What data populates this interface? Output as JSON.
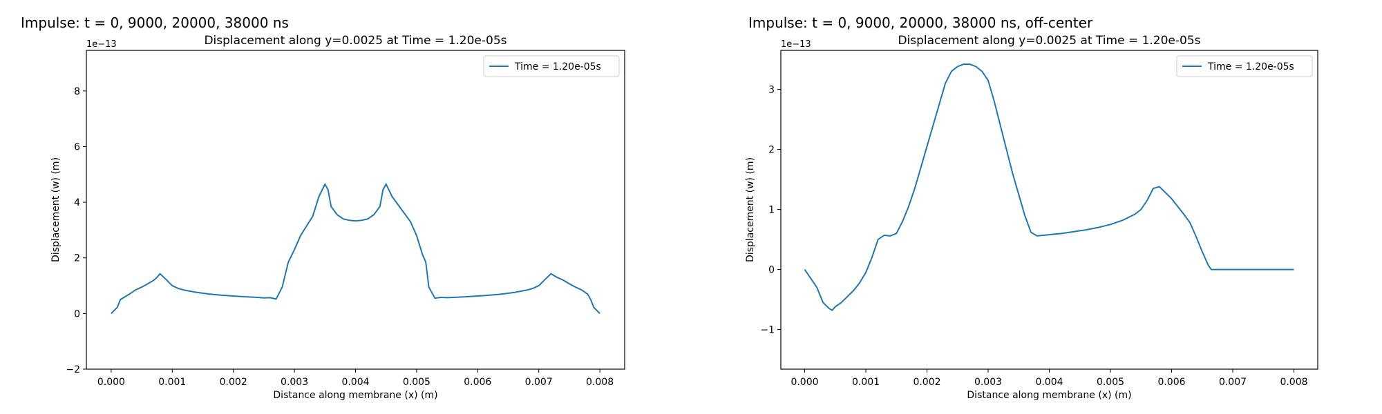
{
  "chart_data": [
    {
      "type": "line",
      "heading": "Impulse: t = 0, 9000, 20000, 38000 ns",
      "title": "Displacement along y=0.0025 at Time = 1.20e-05s",
      "xlabel": "Distance along membrane (x) (m)",
      "ylabel": "Displacement (w) (m)",
      "y_offset_label": "1e−13",
      "xlim": [
        -0.000406,
        0.008406
      ],
      "ylim": [
        -2,
        9.46
      ],
      "xticks": [
        {
          "value": 0,
          "label": "0.000"
        },
        {
          "value": 0.001,
          "label": "0.001"
        },
        {
          "value": 0.002,
          "label": "0.002"
        },
        {
          "value": 0.003,
          "label": "0.003"
        },
        {
          "value": 0.004,
          "label": "0.004"
        },
        {
          "value": 0.005,
          "label": "0.005"
        },
        {
          "value": 0.006,
          "label": "0.006"
        },
        {
          "value": 0.007,
          "label": "0.007"
        },
        {
          "value": 0.008,
          "label": "0.008"
        }
      ],
      "yticks": [
        {
          "value": -2,
          "label": "−2"
        },
        0,
        2,
        4,
        6,
        8
      ],
      "legend": "upper right",
      "x": [
        0,
        0.0001,
        0.00015,
        0.0003,
        0.0004,
        0.0005,
        0.0006,
        0.0007,
        0.00075,
        0.0008,
        0.0009,
        0.001,
        0.0011,
        0.0012,
        0.0014,
        0.0016,
        0.0018,
        0.002,
        0.0022,
        0.0024,
        0.0025,
        0.0026,
        0.0027,
        0.0028,
        0.0029,
        0.003,
        0.0031,
        0.0032,
        0.0033,
        0.0034,
        0.0035,
        0.00355,
        0.0036,
        0.0037,
        0.0038,
        0.0039,
        0.004,
        0.0041,
        0.0042,
        0.0043,
        0.0044,
        0.00445,
        0.0045,
        0.0046,
        0.0047,
        0.0048,
        0.0049,
        0.005,
        0.0051,
        0.00515,
        0.0052,
        0.0053,
        0.0054,
        0.0055,
        0.0056,
        0.0058,
        0.006,
        0.0062,
        0.0064,
        0.0066,
        0.0068,
        0.0069,
        0.007,
        0.0071,
        0.0072,
        0.0073,
        0.0074,
        0.0075,
        0.0076,
        0.0077,
        0.0078,
        0.00785,
        0.0079,
        0.008
      ],
      "series": [
        {
          "name": "Time = 1.20e-05s",
          "color": "#1f77b4",
          "values": [
            0,
            0.22,
            0.5,
            0.7,
            0.85,
            0.95,
            1.07,
            1.2,
            1.3,
            1.43,
            1.22,
            1.0,
            0.9,
            0.84,
            0.76,
            0.7,
            0.66,
            0.63,
            0.6,
            0.58,
            0.56,
            0.57,
            0.52,
            0.95,
            1.85,
            2.3,
            2.8,
            3.15,
            3.5,
            4.2,
            4.65,
            4.45,
            3.85,
            3.55,
            3.4,
            3.35,
            3.33,
            3.35,
            3.4,
            3.55,
            3.85,
            4.45,
            4.65,
            4.2,
            3.9,
            3.6,
            3.3,
            2.8,
            2.1,
            1.85,
            0.95,
            0.55,
            0.58,
            0.57,
            0.58,
            0.6,
            0.63,
            0.66,
            0.7,
            0.76,
            0.84,
            0.9,
            1.0,
            1.22,
            1.43,
            1.3,
            1.2,
            1.07,
            0.95,
            0.85,
            0.7,
            0.5,
            0.22,
            0
          ]
        }
      ]
    },
    {
      "type": "line",
      "heading": "Impulse: t = 0, 9000, 20000, 38000 ns, off-center",
      "title": "Displacement along y=0.0025 at Time = 1.20e-05s",
      "xlabel": "Distance along membrane (x) (m)",
      "ylabel": "Displacement (w) (m)",
      "y_offset_label": "1e−13",
      "xlim": [
        -0.00039,
        0.00839
      ],
      "ylim": [
        -1.66,
        3.65
      ],
      "xticks": [
        {
          "value": 0,
          "label": "0.000"
        },
        {
          "value": 0.001,
          "label": "0.001"
        },
        {
          "value": 0.002,
          "label": "0.002"
        },
        {
          "value": 0.003,
          "label": "0.003"
        },
        {
          "value": 0.004,
          "label": "0.004"
        },
        {
          "value": 0.005,
          "label": "0.005"
        },
        {
          "value": 0.006,
          "label": "0.006"
        },
        {
          "value": 0.007,
          "label": "0.007"
        },
        {
          "value": 0.008,
          "label": "0.008"
        }
      ],
      "yticks": [
        {
          "value": -1,
          "label": "−1"
        },
        0,
        1,
        2,
        3
      ],
      "legend": "upper right",
      "x": [
        0,
        0.0001,
        0.0002,
        0.0003,
        0.0004,
        0.00045,
        0.0005,
        0.0006,
        0.0007,
        0.0008,
        0.0009,
        0.001,
        0.0011,
        0.0012,
        0.0013,
        0.0014,
        0.0015,
        0.0016,
        0.0017,
        0.0018,
        0.0019,
        0.002,
        0.0021,
        0.0022,
        0.0023,
        0.0024,
        0.0025,
        0.0026,
        0.0027,
        0.0028,
        0.0029,
        0.003,
        0.0031,
        0.0032,
        0.0033,
        0.0034,
        0.0035,
        0.0036,
        0.0037,
        0.0038,
        0.004,
        0.0042,
        0.0044,
        0.0046,
        0.0048,
        0.005,
        0.0052,
        0.0054,
        0.0055,
        0.0056,
        0.0057,
        0.0058,
        0.0059,
        0.006,
        0.0061,
        0.0062,
        0.0063,
        0.0064,
        0.0065,
        0.0066,
        0.00665,
        0.0068,
        0.007,
        0.0075,
        0.008
      ],
      "series": [
        {
          "name": "Time = 1.20e-05s",
          "color": "#1f77b4",
          "values": [
            0,
            -0.15,
            -0.3,
            -0.55,
            -0.65,
            -0.68,
            -0.62,
            -0.55,
            -0.45,
            -0.35,
            -0.22,
            -0.05,
            0.2,
            0.5,
            0.57,
            0.56,
            0.6,
            0.8,
            1.05,
            1.35,
            1.7,
            2.05,
            2.4,
            2.75,
            3.1,
            3.3,
            3.38,
            3.42,
            3.42,
            3.38,
            3.3,
            3.15,
            2.8,
            2.4,
            2.0,
            1.6,
            1.25,
            0.9,
            0.62,
            0.56,
            0.58,
            0.6,
            0.63,
            0.66,
            0.7,
            0.75,
            0.82,
            0.92,
            1.0,
            1.15,
            1.35,
            1.38,
            1.28,
            1.18,
            1.05,
            0.92,
            0.78,
            0.55,
            0.3,
            0.07,
            0,
            0,
            0,
            0,
            0
          ]
        }
      ]
    }
  ]
}
